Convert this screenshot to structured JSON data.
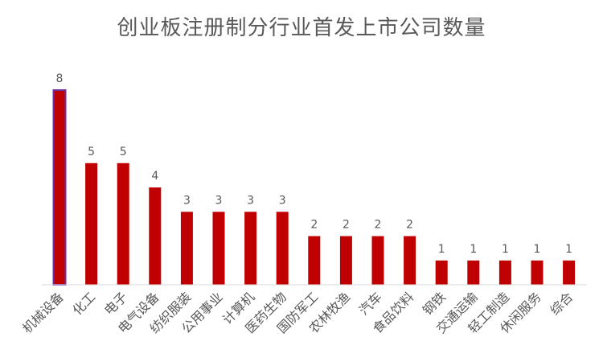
{
  "chart_data": {
    "type": "bar",
    "title": "创业板注册制分行业首发上市公司数量",
    "categories": [
      "机械设备",
      "化工",
      "电子",
      "电气设备",
      "纺织服装",
      "公用事业",
      "计算机",
      "医药生物",
      "国防军工",
      "农林牧渔",
      "汽车",
      "食品饮料",
      "钢铁",
      "交通运输",
      "轻工制造",
      "休闲服务",
      "综合"
    ],
    "values": [
      8,
      5,
      5,
      4,
      3,
      3,
      3,
      3,
      2,
      2,
      2,
      2,
      1,
      1,
      1,
      1,
      1
    ],
    "xlabel": "",
    "ylabel": "",
    "ylim": [
      0,
      8
    ],
    "grid": false,
    "legend": "none",
    "bar_color": "#C00000",
    "highlight_border_color": "#7030A0",
    "highlight_index": 0,
    "axis_color": "#D9D9D9",
    "text_color": "#595959"
  }
}
